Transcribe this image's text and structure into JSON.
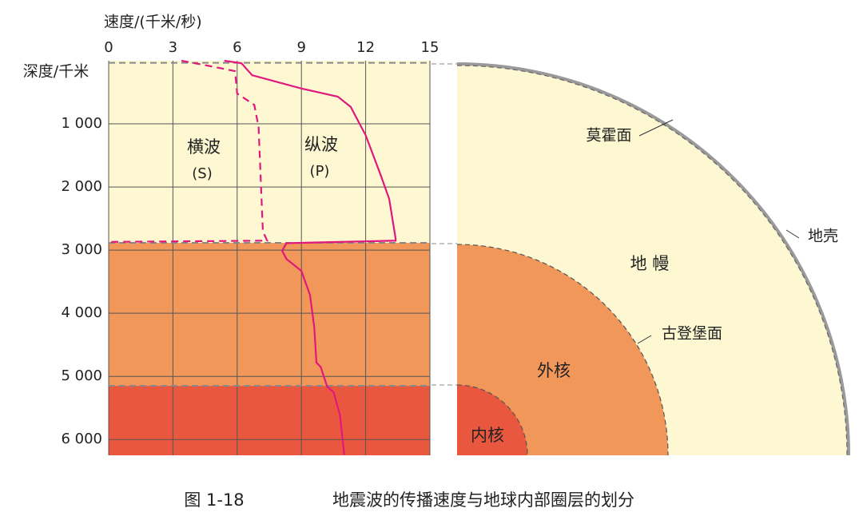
{
  "chart_data": {
    "type": "line",
    "xlabel": "速度/(千米/秒)",
    "ylabel": "深度/千米",
    "xlim": [
      0,
      15
    ],
    "xticks": [
      0,
      3,
      6,
      9,
      12,
      15
    ],
    "ylim": [
      0,
      6250
    ],
    "yticks": [
      {
        "value": 1000,
        "label": "1 000"
      },
      {
        "value": 2000,
        "label": "2 000"
      },
      {
        "value": 3000,
        "label": "3 000"
      },
      {
        "value": 4000,
        "label": "4 000"
      },
      {
        "value": 5000,
        "label": "5 000"
      },
      {
        "value": 6000,
        "label": "6 000"
      }
    ],
    "grid": true,
    "boundaries": [
      33,
      2885,
      5150
    ],
    "layer_colors": [
      "#fdf8d2",
      "#f1975a",
      "#e9583e"
    ],
    "series": [
      {
        "name": "横波",
        "symbol": "(S)",
        "color": "#e0187e",
        "dashed": true,
        "x": [
          3.4,
          4.8,
          5.9,
          6.0,
          6.8,
          7.0,
          7.2,
          7.4,
          0
        ],
        "y": [
          0,
          90,
          165,
          520,
          700,
          1050,
          2700,
          2850,
          2870
        ]
      },
      {
        "name": "纵波",
        "symbol": "(P)",
        "color": "#e0187e",
        "dashed": false,
        "x": [
          5.4,
          6.2,
          6.7,
          9.0,
          10.7,
          11.3,
          12.0,
          12.7,
          13.1,
          13.4,
          13.4,
          8.3,
          8.1,
          8.3,
          9.0,
          9.4,
          9.6,
          9.7,
          9.9,
          10.2,
          10.5,
          10.8,
          11.0
        ],
        "y": [
          0,
          40,
          230,
          440,
          570,
          730,
          1180,
          1810,
          2190,
          2820,
          2850,
          2890,
          3010,
          3140,
          3330,
          3710,
          4220,
          4780,
          4850,
          5160,
          5250,
          5610,
          6240
        ]
      }
    ]
  },
  "diagram": {
    "moho": "莫霍面",
    "crust": "地壳",
    "mantle": "地 幔",
    "gutenberg": "古登堡面",
    "outer_core": "外核",
    "inner_core": "内核"
  },
  "caption": {
    "number": "图 1-18",
    "title": "地震波的传播速度与地球内部圈层的划分"
  }
}
